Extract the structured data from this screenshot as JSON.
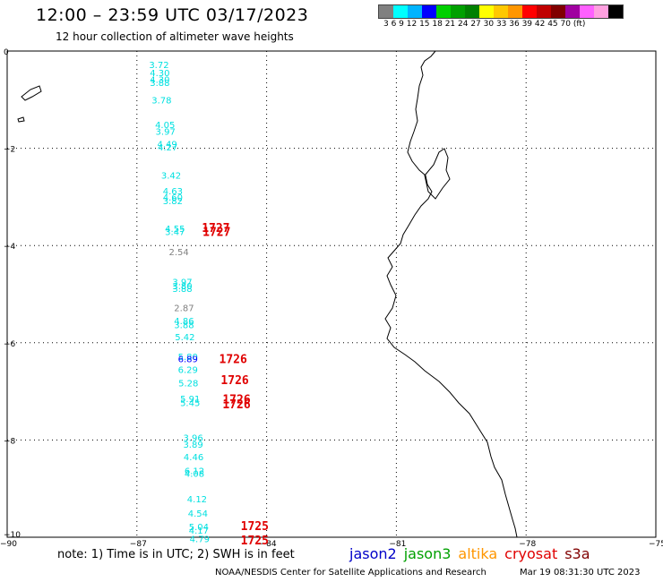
{
  "header": {
    "title": "12:00 – 23:59 UTC 03/17/2023",
    "subtitle": "12 hour collection of altimeter wave heights"
  },
  "legend": {
    "colors": [
      "#808080",
      "#00ffff",
      "#00b4ff",
      "#0000ff",
      "#00d000",
      "#00a000",
      "#008000",
      "#ffff00",
      "#ffc800",
      "#ff9600",
      "#ff0000",
      "#c00000",
      "#800000",
      "#a000a0",
      "#ff60ff",
      "#ffa0e0",
      "#000000"
    ],
    "labels_text": "3   6   9  12  15  18  21  24  27  30  33  36  39  42  45  70 (ft)"
  },
  "axes": {
    "y_labels": [
      "0",
      "−2",
      "−4",
      "−6",
      "−8",
      "−10"
    ],
    "x_labels": [
      "−90",
      "−87",
      "−84",
      "−81",
      "−78",
      "−75"
    ]
  },
  "observations": [
    {
      "lat": -0.35,
      "lon": -86.72,
      "value": "3.72",
      "color": "#00e0e0"
    },
    {
      "lat": -0.52,
      "lon": -86.7,
      "value": "4.30",
      "color": "#00e0e0"
    },
    {
      "lat": -0.65,
      "lon": -86.7,
      "value": "4.30",
      "color": "#00e0e0"
    },
    {
      "lat": -0.72,
      "lon": -86.7,
      "value": "3.88",
      "color": "#00e0e0"
    },
    {
      "lat": -1.08,
      "lon": -86.66,
      "value": "3.78",
      "color": "#00e0e0"
    },
    {
      "lat": -1.58,
      "lon": -86.58,
      "value": "4.05",
      "color": "#00e0e0"
    },
    {
      "lat": -1.72,
      "lon": -86.57,
      "value": "3.97",
      "color": "#00e0e0"
    },
    {
      "lat": -1.98,
      "lon": -86.53,
      "value": "4.49",
      "color": "#00e0e0"
    },
    {
      "lat": -2.04,
      "lon": -86.52,
      "value": "4.27",
      "color": "#00e0e0"
    },
    {
      "lat": -2.62,
      "lon": -86.44,
      "value": "3.42",
      "color": "#00e0e0"
    },
    {
      "lat": -2.95,
      "lon": -86.4,
      "value": "4.63",
      "color": "#00e0e0"
    },
    {
      "lat": -3.08,
      "lon": -86.4,
      "value": "4.60",
      "color": "#00e0e0"
    },
    {
      "lat": -3.15,
      "lon": -86.4,
      "value": "3.82",
      "color": "#00e0e0"
    },
    {
      "lat": -3.72,
      "lon": -86.35,
      "value": "4.55",
      "color": "#00e0e0"
    },
    {
      "lat": -3.78,
      "lon": -86.35,
      "value": "3.47",
      "color": "#00e0e0"
    },
    {
      "lat": -4.2,
      "lon": -86.26,
      "value": "2.54",
      "color": "#808080"
    },
    {
      "lat": -4.82,
      "lon": -86.18,
      "value": "3.97",
      "color": "#00e0e0"
    },
    {
      "lat": -4.9,
      "lon": -86.18,
      "value": "3.80",
      "color": "#00e0e0"
    },
    {
      "lat": -4.95,
      "lon": -86.18,
      "value": "3.88",
      "color": "#00e0e0"
    },
    {
      "lat": -5.35,
      "lon": -86.14,
      "value": "2.87",
      "color": "#808080"
    },
    {
      "lat": -5.62,
      "lon": -86.14,
      "value": "4.86",
      "color": "#00e0e0"
    },
    {
      "lat": -5.7,
      "lon": -86.14,
      "value": "3.88",
      "color": "#00e0e0"
    },
    {
      "lat": -5.95,
      "lon": -86.12,
      "value": "5.42",
      "color": "#00e0e0"
    },
    {
      "lat": -6.35,
      "lon": -86.05,
      "value": "5.80",
      "color": "#00e0e0"
    },
    {
      "lat": -6.4,
      "lon": -86.05,
      "value": "6.89",
      "color": "#0000ff"
    },
    {
      "lat": -6.62,
      "lon": -86.05,
      "value": "6.29",
      "color": "#00e0e0"
    },
    {
      "lat": -6.9,
      "lon": -86.04,
      "value": "5.28",
      "color": "#00e0e0"
    },
    {
      "lat": -7.22,
      "lon": -86.0,
      "value": "5.91",
      "color": "#00e0e0"
    },
    {
      "lat": -7.3,
      "lon": -86.0,
      "value": "5.45",
      "color": "#00e0e0"
    },
    {
      "lat": -8.02,
      "lon": -85.93,
      "value": "3.96",
      "color": "#00e0e0"
    },
    {
      "lat": -8.16,
      "lon": -85.93,
      "value": "3.89",
      "color": "#00e0e0"
    },
    {
      "lat": -8.42,
      "lon": -85.92,
      "value": "4.46",
      "color": "#00e0e0"
    },
    {
      "lat": -8.7,
      "lon": -85.9,
      "value": "6.12",
      "color": "#00e0e0"
    },
    {
      "lat": -8.76,
      "lon": -85.9,
      "value": "4.08",
      "color": "#00e0e0"
    },
    {
      "lat": -9.28,
      "lon": -85.84,
      "value": "4.12",
      "color": "#00e0e0"
    },
    {
      "lat": -9.58,
      "lon": -85.82,
      "value": "4.54",
      "color": "#00e0e0"
    },
    {
      "lat": -9.85,
      "lon": -85.8,
      "value": "5.04",
      "color": "#00e0e0"
    },
    {
      "lat": -9.93,
      "lon": -85.8,
      "value": "4.17",
      "color": "#00e0e0"
    },
    {
      "lat": -10.1,
      "lon": -85.78,
      "value": "4.79",
      "color": "#00e0e0"
    }
  ],
  "orbits": [
    {
      "lat": -3.72,
      "lon": -85.5,
      "value": "1727"
    },
    {
      "lat": -3.8,
      "lon": -85.48,
      "value": "1727"
    },
    {
      "lat": -6.42,
      "lon": -85.1,
      "value": "1726"
    },
    {
      "lat": -6.85,
      "lon": -85.06,
      "value": "1726"
    },
    {
      "lat": -7.25,
      "lon": -85.02,
      "value": "1726"
    },
    {
      "lat": -7.35,
      "lon": -85.02,
      "value": "1726"
    },
    {
      "lat": -9.85,
      "lon": -84.6,
      "value": "1725"
    },
    {
      "lat": -10.15,
      "lon": -84.6,
      "value": "1725"
    }
  ],
  "footer": {
    "note": "note:  1) Time is in UTC; 2) SWH is in feet",
    "missions": [
      {
        "name": "jason2",
        "color": "#0000c8"
      },
      {
        "name": "jason3",
        "color": "#00a000"
      },
      {
        "name": "altika",
        "color": "#ff9600"
      },
      {
        "name": "cryosat",
        "color": "#e00000"
      },
      {
        "name": "s3a",
        "color": "#800000"
      }
    ],
    "credit": "NOAA/NESDIS Center for Satellite Applications and Research",
    "timestamp": "Mar 19 08:31:30 UTC 2023"
  }
}
